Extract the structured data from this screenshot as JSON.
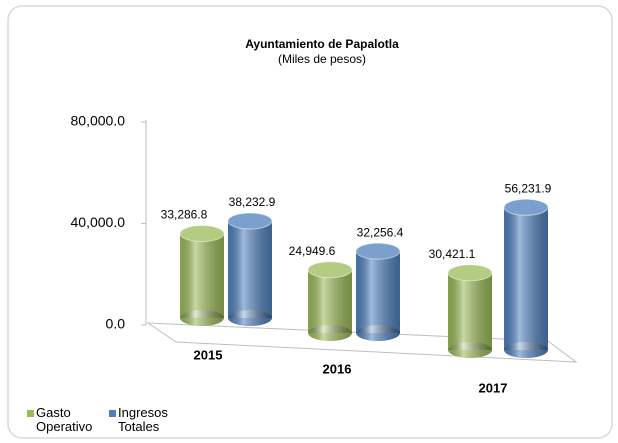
{
  "chart_data": {
    "type": "bar3d",
    "title": "Ayuntamiento de Papalotla",
    "subtitle": "(Miles de pesos)",
    "categories": [
      "2015",
      "2016",
      "2017"
    ],
    "series": [
      {
        "name": "Gasto Operativo",
        "color": "#9bbb59",
        "values": [
          33286.8,
          24949.6,
          30421.1
        ],
        "value_labels": [
          "33,286.8",
          "24,949.6",
          "30,421.1"
        ]
      },
      {
        "name": "Ingresos Totales",
        "color": "#4f81bd",
        "values": [
          38232.9,
          32256.4,
          56231.9
        ],
        "value_labels": [
          "38,232.9",
          "32,256.4",
          "56,231.9"
        ]
      }
    ],
    "ylim": [
      0,
      80000
    ],
    "yticks": [
      {
        "value": 0,
        "label": "0.0"
      },
      {
        "value": 40000,
        "label": "40,000.0"
      },
      {
        "value": 80000,
        "label": "80,000.0"
      }
    ],
    "legend": "bottom-left"
  }
}
